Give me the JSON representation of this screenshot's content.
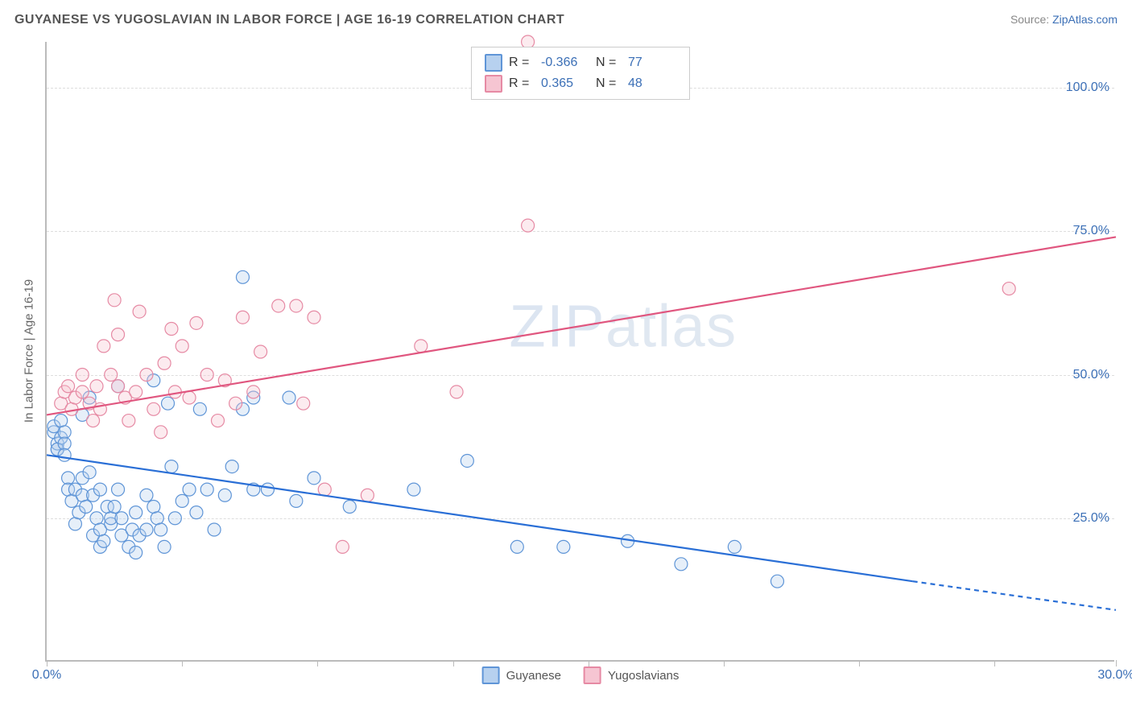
{
  "title": "GUYANESE VS YUGOSLAVIAN IN LABOR FORCE | AGE 16-19 CORRELATION CHART",
  "source_label": "Source:",
  "source_site": "ZipAtlas.com",
  "ylabel": "In Labor Force | Age 16-19",
  "watermark_a": "ZIP",
  "watermark_b": "atlas",
  "chart": {
    "type": "scatter",
    "background_color": "#ffffff",
    "grid_color": "#dddddd",
    "axis_color": "#bbbbbb",
    "xlim": [
      0,
      30
    ],
    "ylim": [
      0,
      108
    ],
    "y_gridlines": [
      25,
      50,
      75,
      100
    ],
    "y_tick_labels": [
      "25.0%",
      "50.0%",
      "75.0%",
      "100.0%"
    ],
    "x_tick_positions": [
      0,
      3.8,
      7.6,
      11.4,
      15.2,
      19.0,
      22.8,
      26.6,
      30.0
    ],
    "x_tick_labels_shown": {
      "0": "0.0%",
      "30": "30.0%"
    },
    "marker_radius": 8,
    "series": [
      {
        "name": "Guyanese",
        "color_fill": "#b7d1ef",
        "color_stroke": "#5f95d7",
        "R": "-0.366",
        "N": "77",
        "trend": {
          "x1": 0,
          "y1": 36,
          "x2": 24.3,
          "y2": 14,
          "color": "#2a6fd6",
          "dash_extend_to_x": 30,
          "dash_extend_to_y": 9
        },
        "points": [
          [
            0.2,
            40
          ],
          [
            0.2,
            41
          ],
          [
            0.3,
            37
          ],
          [
            0.3,
            38
          ],
          [
            0.3,
            37
          ],
          [
            0.4,
            39
          ],
          [
            0.4,
            42
          ],
          [
            0.5,
            40
          ],
          [
            0.5,
            38
          ],
          [
            0.5,
            36
          ],
          [
            0.6,
            32
          ],
          [
            0.6,
            30
          ],
          [
            0.7,
            28
          ],
          [
            0.8,
            30
          ],
          [
            0.8,
            24
          ],
          [
            0.9,
            26
          ],
          [
            1.0,
            32
          ],
          [
            1.0,
            29
          ],
          [
            1.0,
            43
          ],
          [
            1.1,
            27
          ],
          [
            1.2,
            33
          ],
          [
            1.2,
            46
          ],
          [
            1.3,
            29
          ],
          [
            1.3,
            22
          ],
          [
            1.4,
            25
          ],
          [
            1.5,
            30
          ],
          [
            1.5,
            23
          ],
          [
            1.5,
            20
          ],
          [
            1.6,
            21
          ],
          [
            1.7,
            27
          ],
          [
            1.8,
            24
          ],
          [
            1.8,
            25
          ],
          [
            1.9,
            27
          ],
          [
            2.0,
            48
          ],
          [
            2.0,
            30
          ],
          [
            2.1,
            22
          ],
          [
            2.1,
            25
          ],
          [
            2.3,
            20
          ],
          [
            2.4,
            23
          ],
          [
            2.5,
            26
          ],
          [
            2.5,
            19
          ],
          [
            2.6,
            22
          ],
          [
            2.8,
            29
          ],
          [
            2.8,
            23
          ],
          [
            3.0,
            27
          ],
          [
            3.0,
            49
          ],
          [
            3.1,
            25
          ],
          [
            3.2,
            23
          ],
          [
            3.3,
            20
          ],
          [
            3.4,
            45
          ],
          [
            3.5,
            34
          ],
          [
            3.6,
            25
          ],
          [
            3.8,
            28
          ],
          [
            4.0,
            30
          ],
          [
            4.2,
            26
          ],
          [
            4.3,
            44
          ],
          [
            4.5,
            30
          ],
          [
            4.7,
            23
          ],
          [
            5.0,
            29
          ],
          [
            5.2,
            34
          ],
          [
            5.5,
            44
          ],
          [
            5.5,
            67
          ],
          [
            5.8,
            46
          ],
          [
            5.8,
            30
          ],
          [
            6.2,
            30
          ],
          [
            6.8,
            46
          ],
          [
            7.0,
            28
          ],
          [
            7.5,
            32
          ],
          [
            8.5,
            27
          ],
          [
            10.3,
            30
          ],
          [
            11.8,
            35
          ],
          [
            13.2,
            20
          ],
          [
            14.5,
            20
          ],
          [
            16.3,
            21
          ],
          [
            17.8,
            17
          ],
          [
            19.3,
            20
          ],
          [
            20.5,
            14
          ]
        ]
      },
      {
        "name": "Yugoslavians",
        "color_fill": "#f6c5d2",
        "color_stroke": "#e68aa4",
        "R": "0.365",
        "N": "48",
        "trend": {
          "x1": 0,
          "y1": 43,
          "x2": 30,
          "y2": 74,
          "color": "#e0567f"
        },
        "points": [
          [
            0.4,
            45
          ],
          [
            0.5,
            47
          ],
          [
            0.6,
            48
          ],
          [
            0.7,
            44
          ],
          [
            0.8,
            46
          ],
          [
            1.0,
            47
          ],
          [
            1.0,
            50
          ],
          [
            1.2,
            45
          ],
          [
            1.3,
            42
          ],
          [
            1.4,
            48
          ],
          [
            1.5,
            44
          ],
          [
            1.6,
            55
          ],
          [
            1.8,
            50
          ],
          [
            1.9,
            63
          ],
          [
            2.0,
            57
          ],
          [
            2.0,
            48
          ],
          [
            2.2,
            46
          ],
          [
            2.3,
            42
          ],
          [
            2.5,
            47
          ],
          [
            2.6,
            61
          ],
          [
            2.8,
            50
          ],
          [
            3.0,
            44
          ],
          [
            3.2,
            40
          ],
          [
            3.3,
            52
          ],
          [
            3.5,
            58
          ],
          [
            3.6,
            47
          ],
          [
            3.8,
            55
          ],
          [
            4.0,
            46
          ],
          [
            4.2,
            59
          ],
          [
            4.5,
            50
          ],
          [
            4.8,
            42
          ],
          [
            5.0,
            49
          ],
          [
            5.3,
            45
          ],
          [
            5.5,
            60
          ],
          [
            5.8,
            47
          ],
          [
            6.0,
            54
          ],
          [
            6.5,
            62
          ],
          [
            7.0,
            62
          ],
          [
            7.2,
            45
          ],
          [
            7.5,
            60
          ],
          [
            7.8,
            30
          ],
          [
            8.3,
            20
          ],
          [
            9.0,
            29
          ],
          [
            10.5,
            55
          ],
          [
            11.5,
            47
          ],
          [
            13.5,
            108
          ],
          [
            13.5,
            76
          ],
          [
            27.0,
            65
          ]
        ]
      }
    ],
    "legend_bottom": [
      "Guyanese",
      "Yugoslavians"
    ],
    "tick_label_color": "#3b6fb6",
    "axis_label_color": "#666666",
    "title_color": "#555555"
  }
}
